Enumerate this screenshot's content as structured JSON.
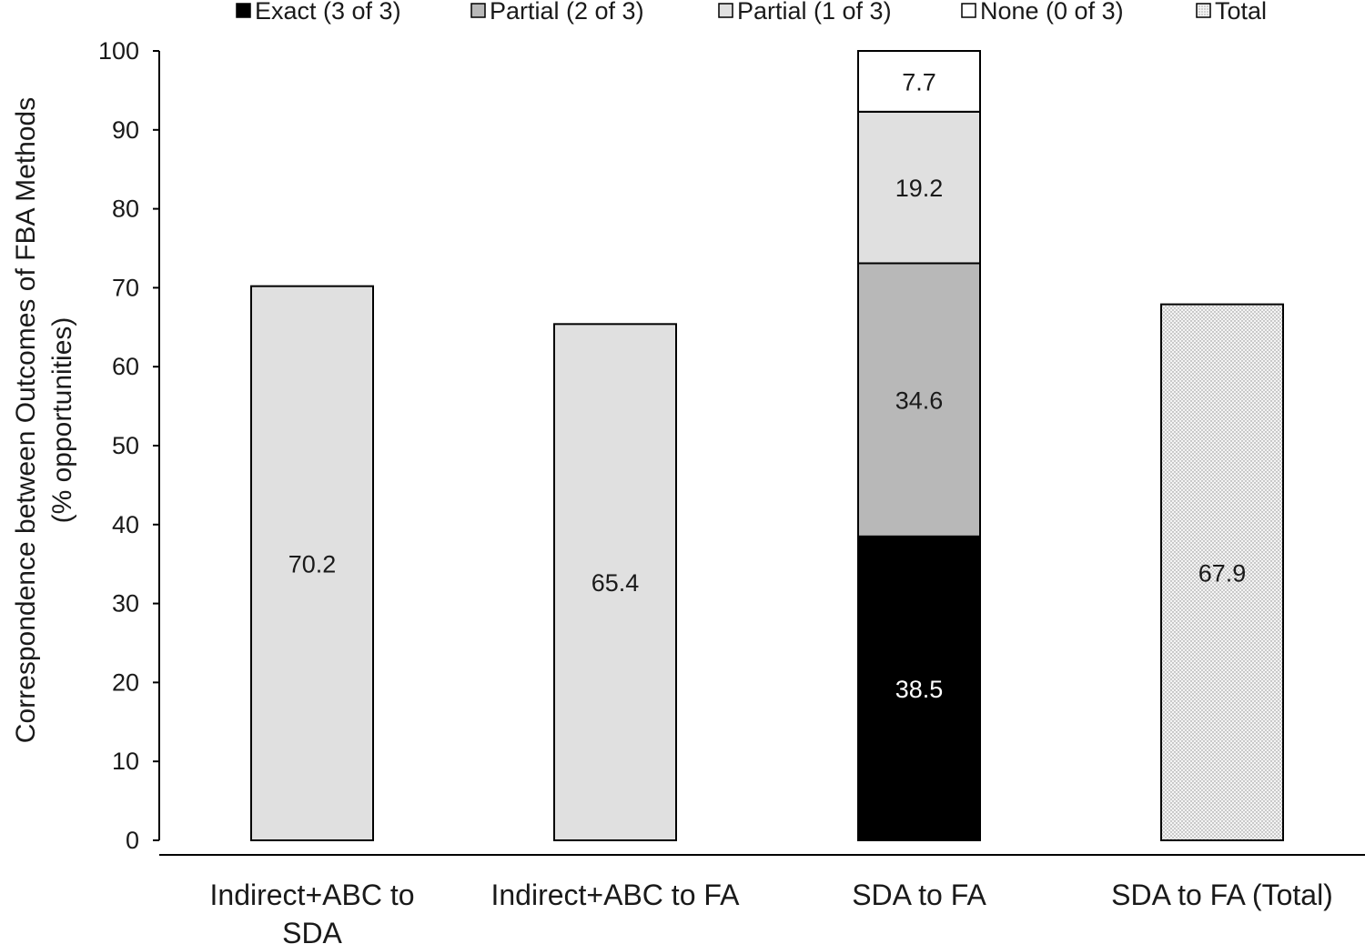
{
  "chart_data": {
    "type": "bar",
    "stacked": true,
    "title": "",
    "ylabel_lines": [
      "Correspondence between Outcomes of FBA Methods",
      "(% opportunities)"
    ],
    "xlabel": "",
    "ylim": [
      0,
      100
    ],
    "y_ticks": [
      0,
      10,
      20,
      30,
      40,
      50,
      60,
      70,
      80,
      90,
      100
    ],
    "grid": false,
    "legend_position": "top",
    "legend": [
      {
        "label": "Exact (3 of 3)",
        "fill": "#000000",
        "pattern": "solid"
      },
      {
        "label": "Partial (2 of 3)",
        "fill": "#b8b8b8",
        "pattern": "solid"
      },
      {
        "label": "Partial (1 of 3)",
        "fill": "#e0e0e0",
        "pattern": "solid"
      },
      {
        "label": "None (0 of 3)",
        "fill": "#ffffff",
        "pattern": "solid"
      },
      {
        "label": "Total",
        "fill": "#f2f2f2",
        "pattern": "dots"
      }
    ],
    "categories": [
      {
        "label_lines": [
          "Indirect+ABC to",
          "SDA"
        ]
      },
      {
        "label_lines": [
          "Indirect+ABC to FA"
        ]
      },
      {
        "label_lines": [
          "SDA to FA"
        ]
      },
      {
        "label_lines": [
          "SDA to FA (Total)"
        ]
      }
    ],
    "bars": [
      {
        "segments": [
          {
            "value": 70.2,
            "label": "70.2",
            "fill": "#e0e0e0",
            "pattern": "solid",
            "text_color": "#1a1a1a"
          }
        ]
      },
      {
        "segments": [
          {
            "value": 65.4,
            "label": "65.4",
            "fill": "#e0e0e0",
            "pattern": "solid",
            "text_color": "#1a1a1a"
          }
        ]
      },
      {
        "segments": [
          {
            "value": 38.5,
            "label": "38.5",
            "fill": "#000000",
            "pattern": "solid",
            "text_color": "#ffffff",
            "series": "Exact (3 of 3)"
          },
          {
            "value": 34.6,
            "label": "34.6",
            "fill": "#b8b8b8",
            "pattern": "solid",
            "text_color": "#1a1a1a",
            "series": "Partial (2 of 3)"
          },
          {
            "value": 19.2,
            "label": "19.2",
            "fill": "#e0e0e0",
            "pattern": "solid",
            "text_color": "#1a1a1a",
            "series": "Partial (1 of 3)"
          },
          {
            "value": 7.7,
            "label": "7.7",
            "fill": "#ffffff",
            "pattern": "solid",
            "text_color": "#1a1a1a",
            "series": "None (0 of 3)"
          }
        ]
      },
      {
        "segments": [
          {
            "value": 67.9,
            "label": "67.9",
            "fill": "#f2f2f2",
            "pattern": "dots",
            "text_color": "#1a1a1a",
            "series": "Total"
          }
        ]
      }
    ]
  }
}
